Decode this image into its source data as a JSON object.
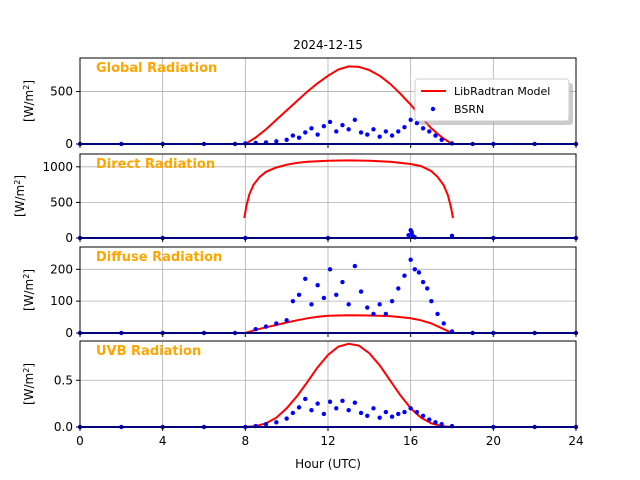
{
  "figure": {
    "title": "2024-12-15",
    "xlabel": "Hour (UTC)",
    "xticks": [
      0,
      4,
      8,
      12,
      16,
      20,
      24
    ],
    "xlim": [
      0,
      24
    ]
  },
  "legend": {
    "placement": "top-right of first panel",
    "entries": [
      {
        "label": "LibRadtran Model",
        "color": "#ff0000",
        "style": "line"
      },
      {
        "label": "BSRN",
        "color": "#0000ff",
        "style": "dot"
      }
    ]
  },
  "colors": {
    "model": "#ff0000",
    "obs": "#0000ff",
    "panel_title": "#ffa500"
  },
  "chart_data": [
    {
      "type": "line",
      "title": "Global Radiation",
      "ylabel": "[W/m2]",
      "ylim": [
        0,
        820
      ],
      "yticks": [
        0,
        500
      ],
      "yticklabels": [
        "0",
        "500"
      ],
      "grid": true,
      "series": [
        {
          "name": "LibRadtran Model",
          "type": "line",
          "x": [
            8,
            8.5,
            9,
            9.5,
            10,
            10.5,
            11,
            11.5,
            12,
            12.5,
            13,
            13.5,
            14,
            14.5,
            15,
            15.5,
            16,
            16.5,
            17,
            17.5,
            18
          ],
          "y": [
            0,
            62,
            140,
            230,
            320,
            410,
            500,
            580,
            650,
            710,
            740,
            735,
            705,
            650,
            575,
            480,
            375,
            260,
            150,
            65,
            0
          ]
        },
        {
          "name": "BSRN",
          "type": "scatter",
          "x": [
            0,
            2,
            4,
            6,
            7.5,
            8,
            8.5,
            9,
            9.5,
            10,
            10.3,
            10.6,
            10.9,
            11.2,
            11.5,
            11.8,
            12.1,
            12.4,
            12.7,
            13,
            13.3,
            13.6,
            13.9,
            14.2,
            14.5,
            14.8,
            15.1,
            15.4,
            15.7,
            16,
            16.3,
            16.6,
            16.9,
            17.2,
            17.5,
            18,
            19,
            20,
            22,
            24
          ],
          "y": [
            0,
            0,
            0,
            0,
            0,
            5,
            10,
            15,
            25,
            40,
            80,
            60,
            110,
            150,
            90,
            170,
            210,
            120,
            180,
            140,
            230,
            110,
            90,
            140,
            70,
            120,
            80,
            120,
            160,
            230,
            200,
            150,
            120,
            80,
            40,
            5,
            0,
            0,
            0,
            0
          ]
        }
      ]
    },
    {
      "type": "line",
      "title": "Direct Radiation",
      "ylabel": "[W/m2]",
      "ylim": [
        0,
        1180
      ],
      "yticks": [
        0,
        500,
        1000
      ],
      "yticklabels": [
        "0",
        "500",
        "1000"
      ],
      "grid": true,
      "series": [
        {
          "name": "LibRadtran Model",
          "type": "line",
          "x": [
            7.95,
            8.05,
            8.2,
            8.4,
            8.7,
            9,
            9.5,
            10,
            10.5,
            11,
            12,
            13,
            14,
            15,
            16,
            16.5,
            17,
            17.3,
            17.6,
            17.8,
            17.95,
            18.05
          ],
          "y": [
            280,
            450,
            620,
            750,
            860,
            930,
            990,
            1030,
            1055,
            1070,
            1085,
            1090,
            1085,
            1070,
            1040,
            1010,
            940,
            860,
            740,
            600,
            430,
            280
          ]
        },
        {
          "name": "BSRN",
          "type": "scatter",
          "x": [
            0,
            4,
            8,
            12,
            15.9,
            16,
            16.05,
            16.1,
            16.2,
            18,
            20,
            24
          ],
          "y": [
            0,
            0,
            0,
            0,
            40,
            110,
            80,
            30,
            10,
            30,
            0,
            0
          ]
        }
      ]
    },
    {
      "type": "line",
      "title": "Diffuse Radiation",
      "ylabel": "[W/m2]",
      "ylim": [
        0,
        270
      ],
      "yticks": [
        0,
        100,
        200
      ],
      "yticklabels": [
        "0",
        "100",
        "200"
      ],
      "grid": true,
      "series": [
        {
          "name": "LibRadtran Model",
          "type": "line",
          "x": [
            8,
            8.5,
            9,
            9.5,
            10,
            10.5,
            11,
            11.5,
            12,
            13,
            14,
            15,
            15.5,
            16,
            16.5,
            17,
            17.5,
            18
          ],
          "y": [
            0,
            10,
            18,
            25,
            33,
            40,
            46,
            51,
            54,
            56,
            55,
            53,
            50,
            46,
            40,
            30,
            15,
            0
          ]
        },
        {
          "name": "BSRN",
          "type": "scatter",
          "x": [
            0,
            2,
            4,
            6,
            7.5,
            8.5,
            9,
            9.5,
            10,
            10.3,
            10.6,
            10.9,
            11.2,
            11.5,
            11.8,
            12.1,
            12.4,
            12.7,
            13,
            13.3,
            13.6,
            13.9,
            14.2,
            14.5,
            14.8,
            15.1,
            15.4,
            15.7,
            16,
            16.2,
            16.4,
            16.6,
            16.8,
            17,
            17.3,
            17.6,
            18,
            19,
            20,
            22,
            24
          ],
          "y": [
            0,
            0,
            0,
            0,
            0,
            12,
            20,
            30,
            40,
            100,
            120,
            170,
            90,
            150,
            110,
            200,
            120,
            160,
            90,
            210,
            130,
            80,
            60,
            90,
            60,
            100,
            140,
            180,
            230,
            200,
            190,
            160,
            140,
            100,
            60,
            30,
            5,
            0,
            0,
            0,
            0
          ]
        }
      ]
    },
    {
      "type": "line",
      "title": "UVB Radiation",
      "ylabel": "[W/m2]",
      "ylim": [
        0,
        0.92
      ],
      "yticks": [
        0,
        0.5
      ],
      "yticklabels": [
        "0.0",
        "0.5"
      ],
      "grid": true,
      "series": [
        {
          "name": "LibRadtran Model",
          "type": "line",
          "x": [
            8,
            8.5,
            9,
            9.5,
            10,
            10.5,
            11,
            11.5,
            12,
            12.5,
            13,
            13.5,
            14,
            14.5,
            15,
            15.5,
            16,
            16.5,
            17,
            17.5,
            18
          ],
          "y": [
            0,
            0.01,
            0.04,
            0.1,
            0.2,
            0.33,
            0.48,
            0.64,
            0.77,
            0.86,
            0.89,
            0.87,
            0.79,
            0.66,
            0.5,
            0.34,
            0.2,
            0.1,
            0.04,
            0.01,
            0
          ]
        },
        {
          "name": "BSRN",
          "type": "scatter",
          "x": [
            0,
            2,
            4,
            6,
            8,
            8.5,
            9,
            9.5,
            10,
            10.3,
            10.6,
            10.9,
            11.2,
            11.5,
            11.8,
            12.1,
            12.4,
            12.7,
            13,
            13.3,
            13.6,
            13.9,
            14.2,
            14.5,
            14.8,
            15.1,
            15.4,
            15.7,
            16,
            16.3,
            16.6,
            16.9,
            17.2,
            17.5,
            18,
            20,
            22,
            24
          ],
          "y": [
            0,
            0,
            0,
            0,
            0,
            0.01,
            0.03,
            0.05,
            0.09,
            0.15,
            0.21,
            0.3,
            0.18,
            0.25,
            0.14,
            0.27,
            0.2,
            0.28,
            0.18,
            0.26,
            0.15,
            0.12,
            0.2,
            0.1,
            0.16,
            0.11,
            0.14,
            0.16,
            0.2,
            0.16,
            0.12,
            0.08,
            0.05,
            0.03,
            0.01,
            0,
            0,
            0
          ]
        }
      ]
    }
  ]
}
